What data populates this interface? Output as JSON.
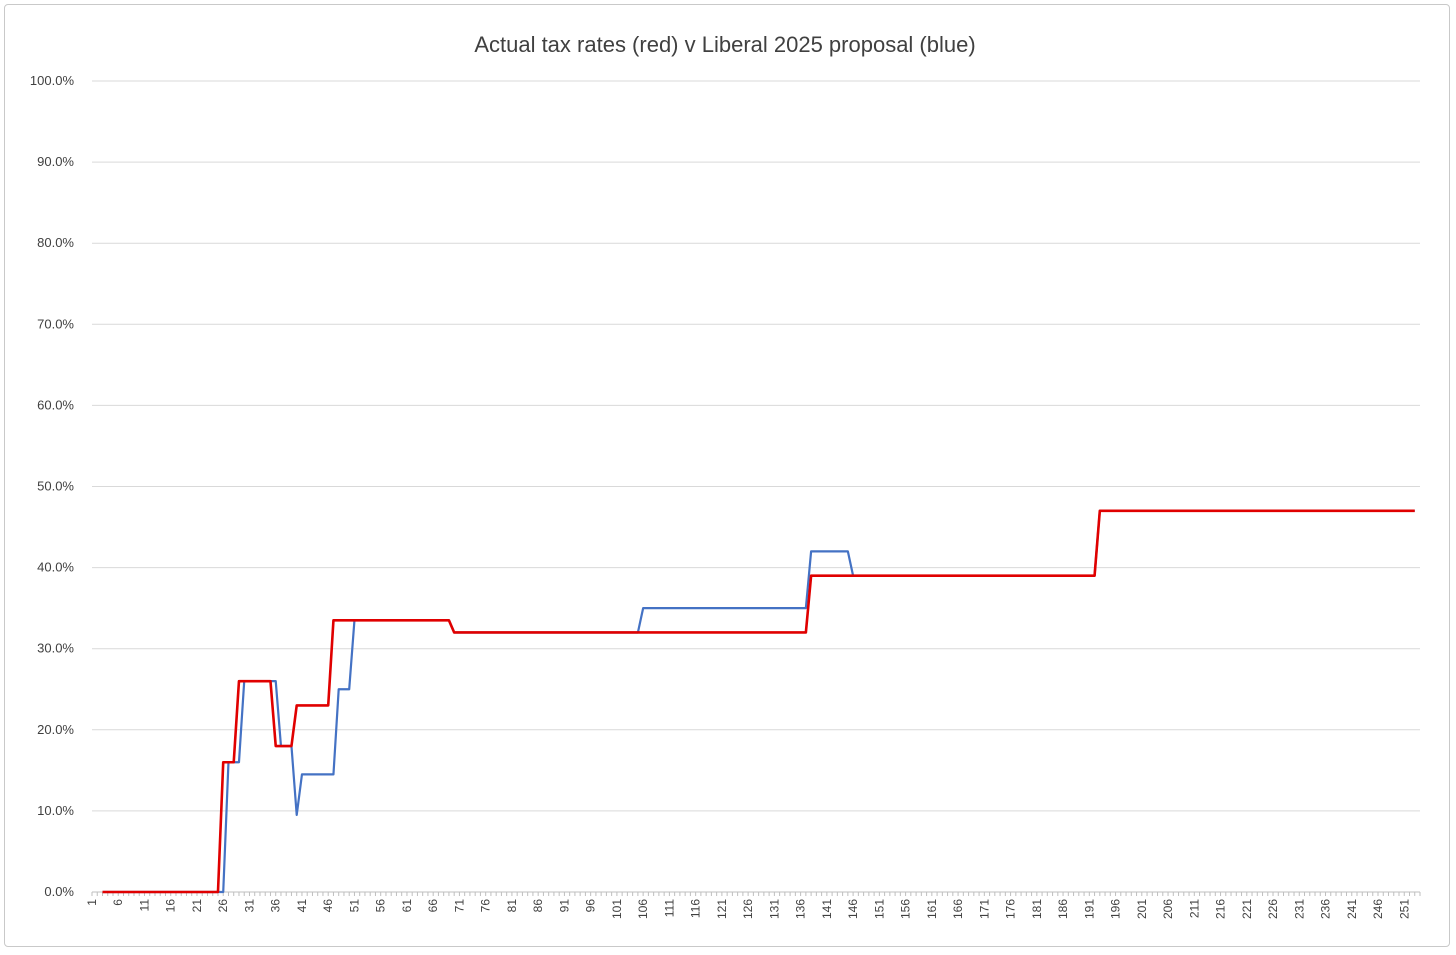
{
  "chart_data": {
    "type": "line",
    "title": "Actual tax rates (red) v Liberal 2025 proposal (blue)",
    "xlabel": "",
    "ylabel": "",
    "ylim": [
      0,
      1
    ],
    "xlim": [
      1,
      254
    ],
    "y_ticks": [
      "0.0%",
      "10.0%",
      "20.0%",
      "30.0%",
      "40.0%",
      "50.0%",
      "60.0%",
      "70.0%",
      "80.0%",
      "90.0%",
      "100.0%"
    ],
    "x_ticks": [
      "1",
      "6",
      "11",
      "16",
      "21",
      "26",
      "31",
      "36",
      "41",
      "46",
      "51",
      "56",
      "61",
      "66",
      "71",
      "76",
      "81",
      "86",
      "91",
      "96",
      "101",
      "106",
      "111",
      "116",
      "121",
      "126",
      "131",
      "136",
      "141",
      "146",
      "151",
      "156",
      "161",
      "166",
      "171",
      "176",
      "181",
      "186",
      "191",
      "196",
      "201",
      "206",
      "211",
      "216",
      "221",
      "226",
      "231",
      "236",
      "241",
      "246",
      "251"
    ],
    "grid": true,
    "legend": "none",
    "series": [
      {
        "color": "#4472c4",
        "points": [
          [
            3,
            0
          ],
          [
            26,
            0
          ],
          [
            27,
            0.16
          ],
          [
            29,
            0.16
          ],
          [
            30,
            0.26
          ],
          [
            36,
            0.26
          ],
          [
            37,
            0.18
          ],
          [
            39,
            0.18
          ],
          [
            40,
            0.095
          ],
          [
            41,
            0.145
          ],
          [
            47,
            0.145
          ],
          [
            48,
            0.25
          ],
          [
            50,
            0.25
          ],
          [
            51,
            0.335
          ],
          [
            69,
            0.335
          ],
          [
            70,
            0.32
          ],
          [
            105,
            0.32
          ],
          [
            106,
            0.35
          ],
          [
            137,
            0.35
          ],
          [
            138,
            0.42
          ],
          [
            145,
            0.42
          ],
          [
            146,
            0.39
          ],
          [
            192,
            0.39
          ],
          [
            193,
            0.47
          ],
          [
            253,
            0.47
          ]
        ]
      },
      {
        "color": "#e00000",
        "points": [
          [
            3,
            0
          ],
          [
            25,
            0
          ],
          [
            26,
            0.16
          ],
          [
            28,
            0.16
          ],
          [
            29,
            0.26
          ],
          [
            35,
            0.26
          ],
          [
            36,
            0.18
          ],
          [
            39,
            0.18
          ],
          [
            40,
            0.23
          ],
          [
            46,
            0.23
          ],
          [
            47,
            0.335
          ],
          [
            69,
            0.335
          ],
          [
            70,
            0.32
          ],
          [
            137,
            0.32
          ],
          [
            138,
            0.39
          ],
          [
            192,
            0.39
          ],
          [
            193,
            0.47
          ],
          [
            253,
            0.47
          ]
        ]
      }
    ]
  }
}
